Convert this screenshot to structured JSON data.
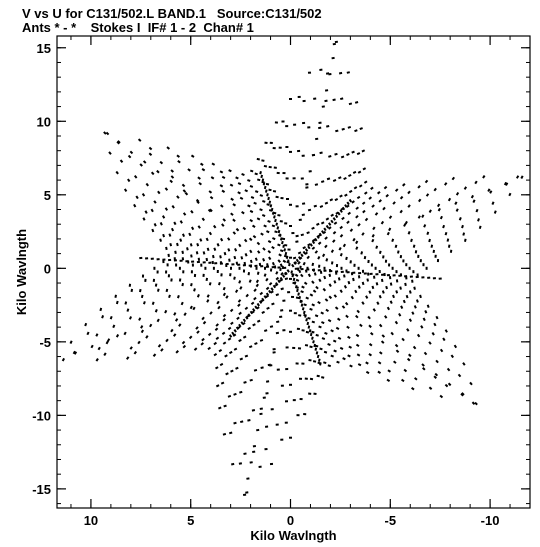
{
  "header": {
    "line1": "V vs U for C131/502.L BAND.1   Source:C131/502",
    "line2": "Ants * - *    Stokes I  IF# 1 - 2  Chan# 1"
  },
  "chart_data": {
    "type": "scatter",
    "title": "V vs U for C131/502.L BAND.1   Source:C131/502",
    "subtitle": "Ants * - *    Stokes I  IF# 1 - 2  Chan# 1",
    "xlabel": "Kilo Wavlngth",
    "ylabel": "Kilo Wavlngth",
    "xlim": [
      11.7,
      -12.0
    ],
    "ylim": [
      -16.3,
      15.8
    ],
    "x_ticks": [
      10,
      5,
      0,
      -5,
      -10
    ],
    "x_tick_labels": [
      "10",
      "5",
      "0",
      "-5",
      "-10"
    ],
    "y_ticks": [
      -15,
      -10,
      -5,
      0,
      5,
      10,
      15
    ],
    "y_tick_labels": [
      "-15",
      "-10",
      "-5",
      "0",
      "5",
      "10",
      "15"
    ],
    "x_minor_step": 1,
    "y_minor_step": 1,
    "grid": false,
    "marker_color": "#000000",
    "uv_pattern": {
      "arm_directions": [
        {
          "u": -2.3,
          "v": 15.4
        },
        {
          "u": -11.6,
          "v": 6.2
        },
        {
          "u": -9.3,
          "v": -9.2
        },
        {
          "u": 2.3,
          "v": -15.4
        },
        {
          "u": 11.6,
          "v": -6.2
        },
        {
          "u": 9.3,
          "v": 9.2
        }
      ],
      "dense_tracks": [
        {
          "u": -3.0,
          "v": 4.6
        },
        {
          "u": 3.0,
          "v": -4.6
        },
        {
          "u": -7.5,
          "v": -0.7
        },
        {
          "u": 7.5,
          "v": 0.7
        },
        {
          "u": 1.5,
          "v": 6.5
        },
        {
          "u": -1.5,
          "v": -6.5
        }
      ],
      "rings": 16,
      "valley_fraction": 0.47
    }
  }
}
